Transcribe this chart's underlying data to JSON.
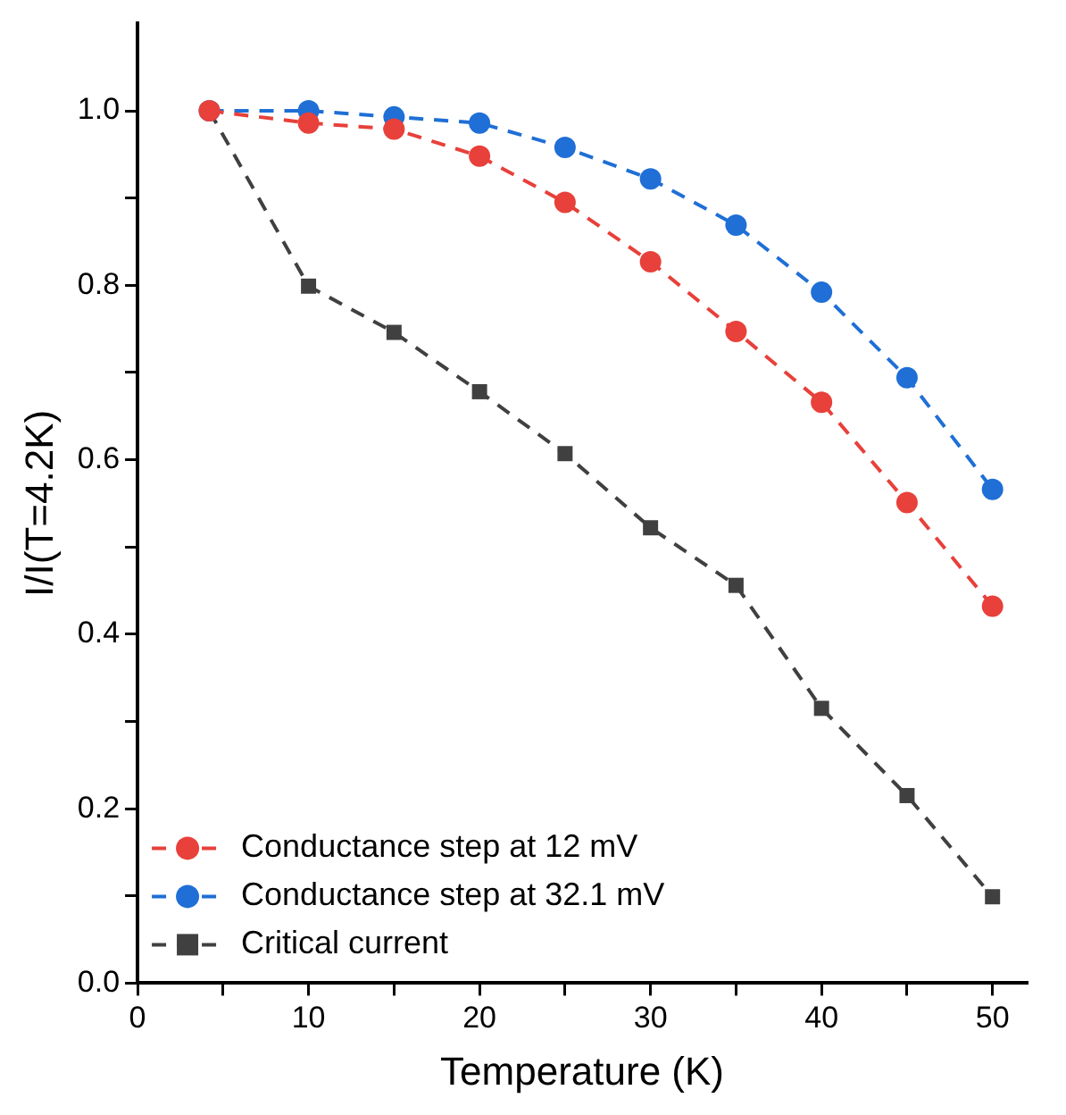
{
  "chart_data": {
    "type": "line",
    "xlabel": "Temperature (K)",
    "ylabel": "I/I(T=4.2K)",
    "x": [
      4.2,
      10,
      15,
      20,
      25,
      30,
      35,
      40,
      45,
      50
    ],
    "series": [
      {
        "name": "Conductance step at 12 mV",
        "color": "#e8403a",
        "marker": "circle",
        "values": [
          1.0,
          0.986,
          0.979,
          0.948,
          0.895,
          0.827,
          0.747,
          0.666,
          0.551,
          0.432
        ]
      },
      {
        "name": "Conductance step at 32.1 mV",
        "color": "#1f6fd6",
        "marker": "circle",
        "values": [
          1.0,
          1.0,
          0.993,
          0.986,
          0.958,
          0.922,
          0.869,
          0.792,
          0.694,
          0.566
        ]
      },
      {
        "name": "Critical current",
        "color": "#404040",
        "marker": "square",
        "values": [
          1.0,
          0.799,
          0.746,
          0.678,
          0.607,
          0.522,
          0.456,
          0.315,
          0.215,
          0.099
        ]
      }
    ],
    "xlim": [
      0,
      52
    ],
    "ylim": [
      0,
      1.1
    ],
    "xticks": [
      0,
      {
        "value": 5,
        "label": null
      },
      10,
      {
        "value": 15,
        "label": null
      },
      20,
      {
        "value": 25,
        "label": null
      },
      30,
      {
        "value": 35,
        "label": null
      },
      40,
      {
        "value": 45,
        "label": null
      },
      50
    ],
    "yticks": [
      {
        "value": 0,
        "label": "0.0"
      },
      {
        "value": 0.1,
        "label": null
      },
      {
        "value": 0.2,
        "label": "0.2"
      },
      {
        "value": 0.3,
        "label": null
      },
      {
        "value": 0.4,
        "label": "0.4"
      },
      {
        "value": 0.5,
        "label": null
      },
      {
        "value": 0.6,
        "label": "0.6"
      },
      {
        "value": 0.7,
        "label": null
      },
      {
        "value": 0.8,
        "label": "0.8"
      },
      {
        "value": 0.9,
        "label": null
      },
      {
        "value": 1.0,
        "label": "1.0"
      }
    ],
    "line_style": "dashed",
    "legend": "bottom left"
  }
}
